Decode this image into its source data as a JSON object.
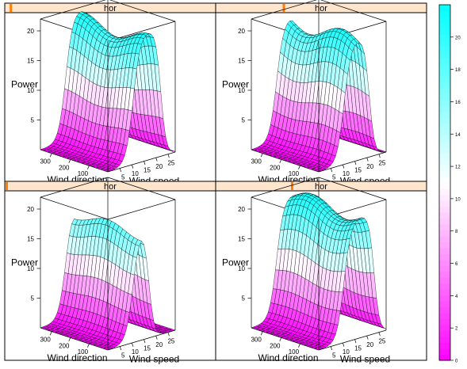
{
  "chart_data": {
    "type": "surface",
    "strip_label": "hor",
    "strip_color": "#ffe5cc",
    "strip_indicator_color": "#ff7f00",
    "x_axis_label": "Wind speed",
    "y_axis_label": "Wind direction",
    "z_axis_label": "Power",
    "x_ticks": [
      5,
      10,
      15,
      20,
      25
    ],
    "y_ticks": [
      100,
      200,
      300
    ],
    "z_ticks": [
      5,
      10,
      15,
      20
    ],
    "x_range": [
      0,
      28
    ],
    "y_range": [
      0,
      360
    ],
    "z_range": [
      0,
      22
    ],
    "x_grid": [
      0,
      1,
      2,
      3,
      4,
      5,
      6,
      7,
      8,
      9,
      10,
      11,
      12,
      13,
      14,
      15,
      16,
      17,
      18,
      19,
      20,
      21,
      22,
      23,
      24,
      25,
      26,
      27,
      28
    ],
    "y_grid": [
      0,
      20,
      40,
      60,
      80,
      100,
      120,
      140,
      160,
      180,
      200,
      220,
      240,
      260,
      280,
      300,
      320,
      340,
      360
    ],
    "panels": [
      {
        "strip_indicator": 0.02,
        "cutoff_speed": 22,
        "dir_amp": 0.06,
        "dir_phase": 0
      },
      {
        "strip_indicator": 0.32,
        "cutoff_speed": 21,
        "dir_amp": 0.07,
        "dir_phase": 90
      },
      {
        "strip_indicator": 0.0,
        "cutoff_speed": 17,
        "dir_amp": 0.05,
        "dir_phase": 180
      },
      {
        "strip_indicator": 0.36,
        "cutoff_speed": 23,
        "dir_amp": 0.06,
        "dir_phase": 270
      }
    ],
    "colorkey": {
      "range": [
        0,
        22
      ],
      "ticks": [
        0,
        2,
        4,
        6,
        8,
        10,
        12,
        14,
        16,
        18,
        20
      ],
      "color_low": "#ff00ff",
      "color_mid": "#ffffff",
      "color_high": "#00ffff"
    }
  }
}
